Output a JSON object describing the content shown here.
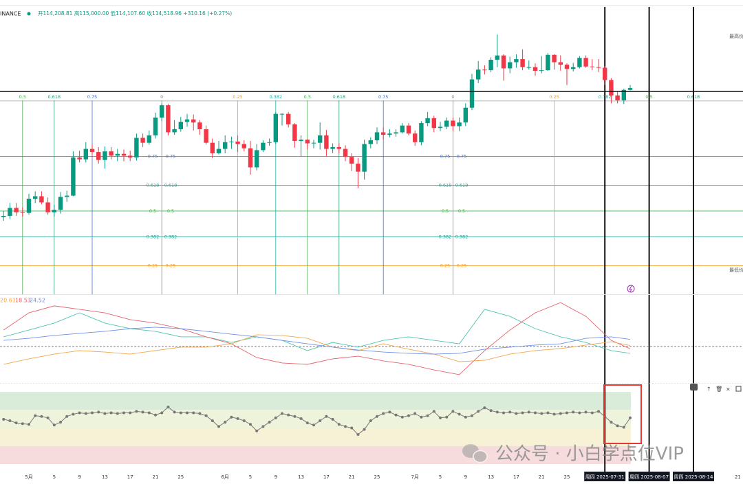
{
  "header": {
    "symbol": "INANCE",
    "quote": "开114,208.81 高115,000.00 低114,107.60 收114,518.96 +310.16 (+0.27%)"
  },
  "price_labels": {
    "high": "最高价",
    "low": "最低价"
  },
  "watermark": "公众号 · 小白学点位VIP",
  "chart_data": [
    {
      "type": "candlestick",
      "up_color": "#089981",
      "down_color": "#f23645",
      "ylim": [
        81300,
        127700
      ],
      "categories": [
        null,
        null,
        null,
        null,
        "5月",
        null,
        null,
        null,
        "5",
        null,
        null,
        null,
        "9",
        null,
        null,
        null,
        "13",
        null,
        null,
        null,
        "17",
        null,
        null,
        null,
        "21",
        null,
        null,
        null,
        "25",
        null,
        null,
        null,
        null,
        null,
        null,
        "6月",
        null,
        null,
        null,
        "5",
        null,
        null,
        null,
        "9",
        null,
        null,
        null,
        "13",
        null,
        null,
        null,
        "17",
        null,
        null,
        null,
        "21",
        null,
        null,
        null,
        "25",
        null,
        null,
        null,
        null,
        null,
        "7月",
        null,
        null,
        null,
        "5",
        null,
        null,
        null,
        "9",
        null,
        null,
        null,
        "13",
        null,
        null,
        null,
        "17",
        null,
        null,
        null,
        "21",
        null,
        null,
        null,
        "25",
        null,
        null,
        null,
        null,
        null,
        "周四 2025-07-31",
        null,
        null,
        null,
        null,
        null,
        null,
        "周四 2025-08-07",
        null,
        null,
        null,
        null,
        null,
        null,
        "周四 2025-08-14",
        null,
        null,
        null,
        null,
        null,
        null,
        "21"
      ],
      "open": [
        93500,
        93700,
        95000,
        94300,
        94200,
        96500,
        96900,
        95900,
        94300,
        94700,
        96800,
        97000,
        103200,
        102900,
        104600,
        104100,
        102800,
        104200,
        103500,
        103800,
        103500,
        103200,
        106400,
        105600,
        106800,
        109700,
        111700,
        107300,
        107800,
        109000,
        109400,
        108900,
        107800,
        105600,
        103900,
        104600,
        105700,
        105800,
        105400,
        104700,
        101600,
        104400,
        105600,
        105700,
        110300,
        110300,
        108600,
        105900,
        106100,
        105500,
        105600,
        106800,
        104600,
        104900,
        104600,
        103300,
        102200,
        100900,
        105400,
        106000,
        107300,
        106900,
        107100,
        107300,
        108400,
        107100,
        105700,
        108800,
        109600,
        108000,
        108200,
        109200,
        108300,
        108900,
        111300,
        115900,
        117500,
        117400,
        119100,
        119800,
        117700,
        118700,
        119200,
        117900,
        117900,
        117300,
        117400,
        119900,
        118700,
        118300,
        117600,
        117900,
        119400,
        118000,
        117900,
        117800,
        115800,
        113300,
        112500,
        114200,
        null,
        null,
        null,
        null,
        null,
        null,
        null,
        null,
        null,
        null,
        null,
        null,
        null,
        null,
        null,
        null,
        null
      ],
      "high": [
        94500,
        95800,
        95800,
        95100,
        97300,
        97700,
        97700,
        96700,
        95500,
        97600,
        97800,
        104200,
        104300,
        105700,
        105400,
        104900,
        105000,
        104900,
        104600,
        104500,
        104300,
        107100,
        107100,
        107600,
        110500,
        112000,
        111900,
        109300,
        109800,
        110300,
        110200,
        109300,
        108400,
        106300,
        105900,
        106800,
        106600,
        106800,
        106000,
        105900,
        105400,
        106000,
        106300,
        110600,
        110400,
        110600,
        108800,
        106800,
        106200,
        106100,
        108900,
        107700,
        105500,
        105500,
        105200,
        103900,
        103100,
        106100,
        106500,
        108100,
        108100,
        107800,
        107800,
        108800,
        108800,
        107600,
        109100,
        110600,
        110000,
        109000,
        109700,
        109700,
        109700,
        112000,
        116800,
        118900,
        118200,
        119500,
        123200,
        120000,
        119600,
        120000,
        120800,
        119000,
        118500,
        119700,
        120200,
        120000,
        119800,
        118500,
        118600,
        119700,
        119800,
        119200,
        119200,
        118100,
        116100,
        114000,
        114400,
        115000,
        null,
        null,
        null,
        null,
        null,
        null,
        null,
        null,
        null,
        null,
        null,
        null,
        null,
        null,
        null,
        null,
        null
      ],
      "low": [
        92900,
        93200,
        93700,
        93600,
        93900,
        95800,
        95600,
        93900,
        93600,
        94100,
        96000,
        96900,
        102400,
        102400,
        103400,
        102200,
        101400,
        102900,
        102600,
        102600,
        102600,
        102700,
        104900,
        105300,
        106300,
        109100,
        106800,
        106900,
        107400,
        108200,
        107600,
        106900,
        105300,
        103100,
        103700,
        103900,
        104600,
        104100,
        104200,
        100400,
        101100,
        104100,
        105100,
        105400,
        108400,
        108100,
        104800,
        103400,
        104500,
        104700,
        104500,
        103400,
        103900,
        103900,
        102600,
        101000,
        98200,
        99600,
        104700,
        105400,
        106100,
        106500,
        106600,
        107100,
        106800,
        105100,
        105200,
        108300,
        107300,
        107500,
        107800,
        107500,
        107500,
        108300,
        110900,
        115300,
        116700,
        117100,
        117900,
        115700,
        116900,
        117800,
        117400,
        117500,
        116500,
        116900,
        117300,
        117500,
        117300,
        115000,
        117200,
        117700,
        117800,
        117400,
        117100,
        115000,
        112000,
        112000,
        111900,
        114100,
        null,
        null,
        null,
        null,
        null,
        null,
        null,
        null,
        null,
        null,
        null,
        null,
        null,
        null,
        null,
        null,
        null
      ],
      "close": [
        93700,
        95000,
        94300,
        94200,
        96500,
        96900,
        95900,
        94300,
        94700,
        96800,
        97000,
        103200,
        102900,
        104600,
        104100,
        102800,
        104200,
        103500,
        103800,
        103500,
        103200,
        106400,
        105600,
        106800,
        109700,
        111700,
        107300,
        107800,
        109000,
        109400,
        108900,
        107800,
        105600,
        103900,
        104600,
        105700,
        105800,
        105400,
        104700,
        101600,
        104400,
        105600,
        105700,
        110300,
        110300,
        108600,
        105900,
        106100,
        105500,
        105600,
        106800,
        104600,
        104900,
        104600,
        103300,
        102200,
        100900,
        105400,
        106000,
        107300,
        106900,
        107100,
        107300,
        108400,
        107100,
        105700,
        108800,
        109600,
        108000,
        108200,
        109200,
        108300,
        108900,
        111300,
        115900,
        117500,
        117400,
        119100,
        119800,
        117700,
        118700,
        119200,
        117900,
        117900,
        117300,
        117400,
        119900,
        118700,
        118300,
        117600,
        117900,
        119400,
        118000,
        117900,
        117800,
        115800,
        113300,
        112500,
        114200,
        114500,
        null,
        null,
        null,
        null,
        null,
        null,
        null,
        null,
        null,
        null,
        null,
        null,
        null,
        null,
        null,
        null,
        null
      ],
      "fib_levels": [
        {
          "value": 112400,
          "color": "#9e9e9e"
        },
        {
          "label": "0.75",
          "value": 103400,
          "color": "#3f6fd1"
        },
        {
          "label": "0.618",
          "value": 98700,
          "color": "#1e9e8e"
        },
        {
          "label": "0.5",
          "value": 94500,
          "color": "#4caf50"
        },
        {
          "label": "0.382",
          "value": 90300,
          "color": "#1e9e8e"
        },
        {
          "label": "0.25",
          "value": 85600,
          "color": "#f0a030"
        }
      ],
      "fib_time": [
        {
          "label": "0.5",
          "at": 3,
          "color": "#4caf50"
        },
        {
          "label": "0.618",
          "at": 8,
          "color": "#2e9e70"
        },
        {
          "label": "0.75",
          "at": 14,
          "color": "#3f6fd1"
        },
        {
          "label": "0",
          "at": 25,
          "color": "#888888"
        },
        {
          "label": "0.25",
          "at": 37,
          "color": "#f0a030"
        },
        {
          "label": "0.382",
          "at": 43,
          "color": "#1fb0a4"
        },
        {
          "label": "0.5",
          "at": 48,
          "color": "#4caf50"
        },
        {
          "label": "0.618",
          "at": 53,
          "color": "#2e9e70"
        },
        {
          "label": "0.75",
          "at": 60,
          "color": "#3f6fd1"
        },
        {
          "label": "0",
          "at": 71,
          "color": "#888888"
        },
        {
          "label": "0.25",
          "at": 87,
          "color": "#f0a030"
        },
        {
          "label": "0.382",
          "at": 95,
          "color": "#1fb0a4"
        },
        {
          "label": "0.5",
          "at": 102,
          "color": "#4caf50"
        },
        {
          "label": "0.618",
          "at": 109,
          "color": "#2e9e70"
        }
      ]
    },
    {
      "type": "line",
      "ylim": [
        0,
        50
      ],
      "reference_level": 20,
      "series": [
        {
          "color": "#4fc4b0",
          "x": [
            0,
            4,
            8,
            12,
            16,
            20,
            24,
            28,
            32,
            36,
            40,
            44,
            48,
            52,
            56,
            60,
            64,
            68,
            72,
            76,
            80,
            84,
            88,
            92,
            96,
            99
          ],
          "values": [
            26.1,
            30.4,
            34.8,
            41.3,
            34.8,
            31.3,
            29.6,
            26.1,
            26.1,
            22.6,
            26.1,
            23.9,
            17.4,
            22.6,
            19.6,
            23.9,
            26.1,
            23.9,
            21.7,
            43.5,
            39.1,
            31.3,
            26.1,
            22.6,
            17.4,
            15.7
          ]
        },
        {
          "color": "#e8606a",
          "x": [
            0,
            4,
            8,
            12,
            16,
            20,
            24,
            28,
            32,
            36,
            40,
            44,
            48,
            52,
            56,
            60,
            64,
            68,
            72,
            76,
            80,
            84,
            88,
            92,
            96,
            99
          ],
          "values": [
            30.4,
            41.3,
            45.7,
            43.5,
            41.3,
            37.0,
            34.8,
            31.3,
            26.1,
            21.7,
            13.0,
            9.6,
            8.7,
            12.2,
            13.9,
            10.9,
            8.7,
            5.2,
            2.2,
            17.4,
            30.4,
            41.3,
            47.8,
            39.1,
            23.9,
            18.53
          ]
        },
        {
          "color": "#f3a64a",
          "x": [
            0,
            4,
            8,
            12,
            16,
            20,
            24,
            28,
            32,
            36,
            40,
            44,
            48,
            52,
            56,
            60,
            64,
            68,
            72,
            76,
            80,
            84,
            88,
            92,
            96,
            99
          ],
          "values": [
            8.7,
            12.2,
            15.2,
            17.4,
            16.5,
            15.2,
            17.4,
            19.6,
            19.6,
            21.7,
            27.4,
            27.0,
            25.2,
            19.6,
            17.4,
            21.7,
            18.3,
            15.2,
            10.4,
            11.3,
            15.2,
            17.4,
            18.7,
            20.9,
            23.0,
            20.61
          ]
        },
        {
          "color": "#6f8fe8",
          "x": [
            0,
            4,
            8,
            12,
            16,
            20,
            24,
            28,
            32,
            36,
            40,
            44,
            48,
            52,
            56,
            60,
            64,
            68,
            72,
            76,
            80,
            84,
            88,
            92,
            96,
            99
          ],
          "values": [
            23.9,
            25.2,
            27.0,
            28.3,
            29.6,
            31.3,
            32.2,
            31.3,
            29.6,
            27.8,
            26.1,
            23.9,
            21.7,
            19.6,
            17.8,
            16.5,
            15.7,
            15.2,
            15.7,
            18.3,
            19.6,
            20.9,
            21.7,
            25.2,
            26.1,
            24.52
          ]
        }
      ]
    },
    {
      "type": "line",
      "ylim": [
        0,
        100
      ],
      "color": "#777777",
      "bands": [
        {
          "from": 75,
          "to": 100,
          "color": "#d9ecd9"
        },
        {
          "from": 50,
          "to": 75,
          "color": "#eef3dc"
        },
        {
          "from": 25,
          "to": 50,
          "color": "#f7f2d6"
        },
        {
          "from": 0,
          "to": 25,
          "color": "#f6dcdc"
        }
      ],
      "values": [
        62,
        60,
        57,
        56,
        55,
        67,
        66,
        64,
        54,
        58,
        66,
        69,
        71,
        70,
        71,
        72,
        70,
        71,
        70,
        71,
        71,
        73,
        72,
        71,
        68,
        71,
        79,
        72,
        71,
        71,
        71,
        70,
        67,
        60,
        52,
        58,
        65,
        63,
        60,
        55,
        46,
        52,
        58,
        64,
        70,
        68,
        66,
        63,
        57,
        54,
        60,
        66,
        62,
        55,
        52,
        50,
        41,
        48,
        60,
        66,
        70,
        72,
        68,
        65,
        67,
        70,
        65,
        67,
        73,
        64,
        65,
        73,
        69,
        65,
        67,
        73,
        78,
        74,
        72,
        71,
        72,
        70,
        71,
        72,
        71,
        70,
        71,
        69,
        70,
        71,
        72,
        71,
        72,
        71,
        73,
        66,
        58,
        53,
        51,
        64,
        null,
        null,
        null,
        null,
        null,
        null,
        null,
        null,
        null,
        null,
        null,
        null,
        null,
        null,
        null,
        null,
        null
      ]
    }
  ]
}
